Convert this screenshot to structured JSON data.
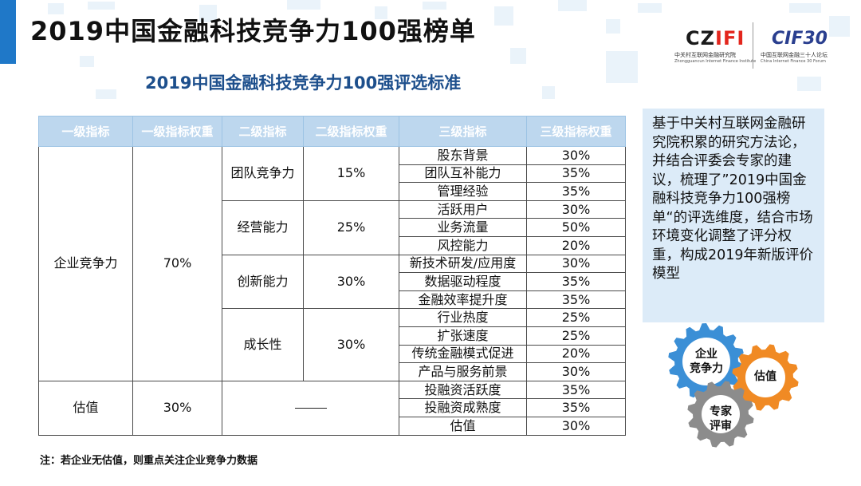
{
  "page": {
    "title": "2019中国金融科技竞争力100强榜单",
    "subtitle": "2019中国金融科技竞争力100强评选标准",
    "note": "注：若企业无估值，则重点关注企业竞争力数据"
  },
  "logos": {
    "czifi": {
      "text_main": "CZ",
      "text_accent": "IFI",
      "line1": "中关村互联网金融研究院",
      "line2": "Zhongguancun Internet Finance Institute"
    },
    "cif30": {
      "text": "CIF30",
      "line1": "中国互联网金融三十人论坛",
      "line2": "China Internet Finance 30 Forum"
    }
  },
  "table": {
    "headers": [
      "一级指标",
      "一级指标权重",
      "二级指标",
      "二级指标权重",
      "三级指标",
      "三级指标权重"
    ],
    "groups": [
      {
        "level1": "企业竞争力",
        "level1_weight": "70%",
        "level2": [
          {
            "name": "团队竞争力",
            "weight": "15%",
            "items": [
              {
                "name": "股东背景",
                "weight": "30%"
              },
              {
                "name": "团队互补能力",
                "weight": "35%"
              },
              {
                "name": "管理经验",
                "weight": "35%"
              }
            ]
          },
          {
            "name": "经营能力",
            "weight": "25%",
            "items": [
              {
                "name": "活跃用户",
                "weight": "30%"
              },
              {
                "name": "业务流量",
                "weight": "50%"
              },
              {
                "name": "风控能力",
                "weight": "20%"
              }
            ]
          },
          {
            "name": "创新能力",
            "weight": "30%",
            "items": [
              {
                "name": "新技术研发/应用度",
                "weight": "30%"
              },
              {
                "name": "数据驱动程度",
                "weight": "35%"
              },
              {
                "name": "金融效率提升度",
                "weight": "35%"
              }
            ]
          },
          {
            "name": "成长性",
            "weight": "30%",
            "items": [
              {
                "name": "行业热度",
                "weight": "25%"
              },
              {
                "name": "扩张速度",
                "weight": "25%"
              },
              {
                "name": "传统金融模式促进",
                "weight": "20%"
              },
              {
                "name": "产品与服务前景",
                "weight": "30%"
              }
            ]
          }
        ]
      },
      {
        "level1": "估值",
        "level1_weight": "30%",
        "level2_placeholder": "——",
        "items": [
          {
            "name": "投融资活跃度",
            "weight": "35%"
          },
          {
            "name": "投融资成熟度",
            "weight": "35%"
          },
          {
            "name": "估值",
            "weight": "30%"
          }
        ]
      }
    ]
  },
  "description": "基于中关村互联网金融研究院积累的研究方法论，并结合评委会专家的建议，梳理了”2019中国金融科技竞争力100强榜单“的评选维度，结合市场环境变化调整了评分权重，构成2019年新版评价模型",
  "gears": {
    "labels": [
      {
        "text": "企业\n竞争力",
        "color": "#3b8fd6"
      },
      {
        "text": "估值",
        "color": "#f08a24"
      },
      {
        "text": "专家\n评审",
        "color": "#8c8c8c"
      }
    ]
  }
}
